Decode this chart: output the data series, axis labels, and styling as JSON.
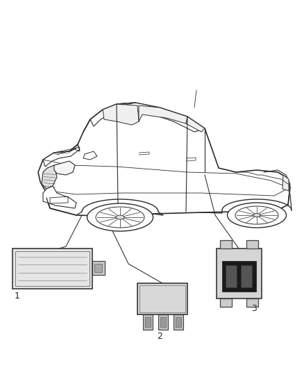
{
  "background_color": "#ffffff",
  "fig_width": 4.38,
  "fig_height": 5.33,
  "dpi": 100,
  "text_color": "#222222",
  "line_color": "#333333",
  "car_line_color": "#2a2a2a",
  "car_lw": 0.9
}
